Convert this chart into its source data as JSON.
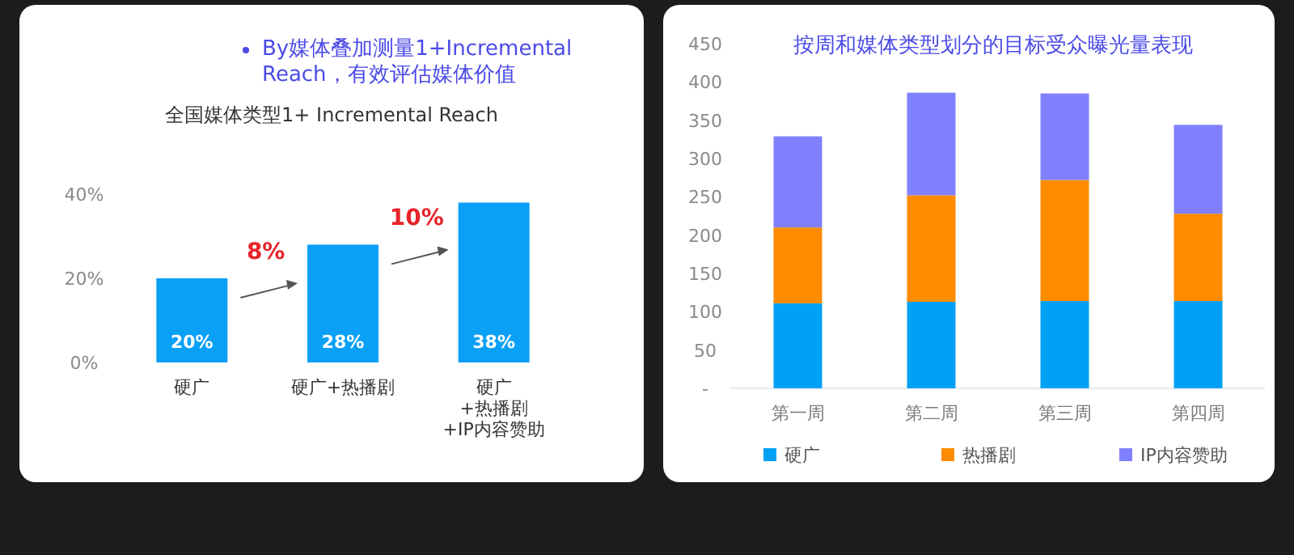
{
  "chart_data": [
    {
      "type": "bar",
      "title": "By媒体叠加测量1+Incremental Reach，有效评估媒体价值",
      "subtitle": "全国媒体类型1+ Incremental Reach",
      "categories": [
        "硬广",
        "硬广+热播剧",
        "硬广\n+热播剧\n+IP内容赞助"
      ],
      "values": [
        20,
        28,
        38
      ],
      "color": "#0aa0f5",
      "value_labels": [
        "20%",
        "28%",
        "38%"
      ],
      "ylim": [
        0,
        40
      ],
      "yticks": [
        {
          "value": 0,
          "label": "0%"
        },
        {
          "value": 20,
          "label": "20%"
        },
        {
          "value": 40,
          "label": "40%"
        }
      ],
      "annotations": [
        "8%",
        "10%"
      ]
    },
    {
      "type": "bar",
      "title": "按周和媒体类型划分的目标受众曝光量表现",
      "stacked": true,
      "categories": [
        "第一周",
        "第二周",
        "第三周",
        "第四周"
      ],
      "series": [
        {
          "name": "硬广",
          "color": "#00a0f5",
          "values": [
            111,
            113,
            114,
            114
          ]
        },
        {
          "name": "热播剧",
          "color": "#ff8c00",
          "values": [
            99,
            139,
            158,
            114
          ]
        },
        {
          "name": "IP内容赞助",
          "color": "#8080ff",
          "values": [
            119,
            134,
            113,
            116
          ]
        }
      ],
      "ylim": [
        0,
        450
      ],
      "yticks": [
        {
          "value": 0,
          "label": "-"
        },
        50,
        100,
        150,
        200,
        250,
        300,
        350,
        400,
        450
      ],
      "legend": "bottom"
    }
  ]
}
